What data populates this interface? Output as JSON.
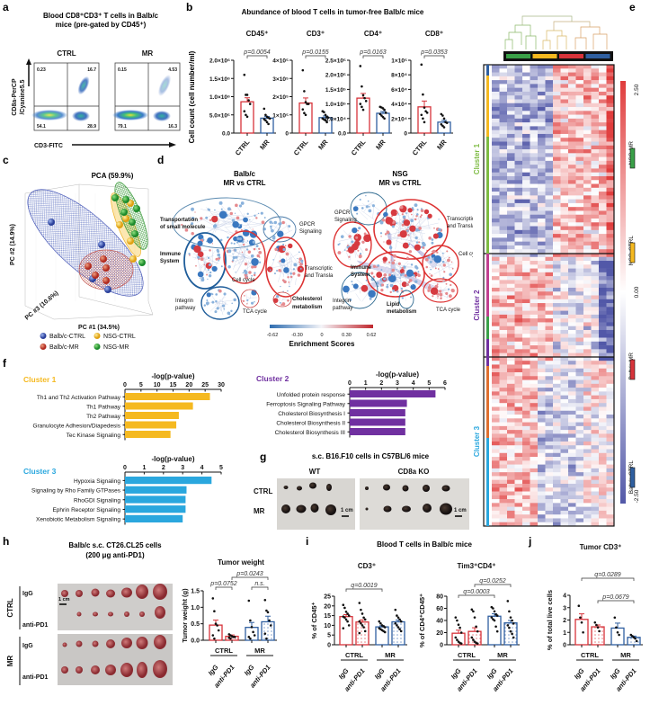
{
  "colors": {
    "red": "#d7333a",
    "blue": "#2f5fa0",
    "yellow": "#f5b920",
    "green": "#3aa048",
    "purple": "#7030a0",
    "cyan": "#2aa7de",
    "cluster1": "#7dbb42"
  },
  "panel_labels": {
    "a": "a",
    "b": "b",
    "c": "c",
    "d": "d",
    "e": "e",
    "f": "f",
    "g": "g",
    "h": "h",
    "i": "i",
    "j": "j"
  },
  "a": {
    "title_line1": "Blood CD8⁺CD3⁺ T cells in Balb/c",
    "title_line2": "mice (pre-gated by CD45⁺)",
    "ylabel1": "CD8a-PerCP",
    "ylabel2": "/Cyanine5.5",
    "xlabel": "CD3-FITC",
    "plots": [
      {
        "label": "CTRL",
        "quadrants": [
          "0.23",
          "16.7",
          "54.1",
          "28.9"
        ]
      },
      {
        "label": "MR",
        "quadrants": [
          "0.15",
          "4.53",
          "79.1",
          "16.3"
        ]
      }
    ]
  },
  "b": {
    "title": "Abundance of blood T cells in tumor-free Balb/c mice",
    "ylabel": "Cell count (cell number/ml)"
  },
  "c": {
    "title": "PCA (59.9%)",
    "pc1": "PC #1 (34.5%)",
    "pc2": "PC #2 (14.9%)",
    "pc3": "PC #3 (10.6%)",
    "legend": [
      "Balb/c-CTRL",
      "NSG-CTRL",
      "Balb/c-MR",
      "NSG-MR"
    ]
  },
  "d": {
    "balb_title1": "Balb/c",
    "balb_title2": "MR vs CTRL",
    "nsg_title1": "NSG",
    "nsg_title2": "MR vs CTRL",
    "balb_labels": {
      "transport1": "Transportation",
      "transport2": "of small molecule",
      "gpcr1": "GPCR",
      "gpcr2": "Signaling",
      "immune1": "Immune",
      "immune2": "System",
      "cellcycle": "Cell cycle",
      "transc1": "Transcriptic",
      "transc2": "and Transla",
      "integrin1": "Integrin",
      "integrin2": "pathway",
      "tca": "TCA cycle",
      "chol1": "Cholesterol",
      "chol2": "metabolism"
    },
    "nsg_labels": {
      "gpcr1": "GPCR",
      "gpcr2": "Signaling",
      "transc1": "Transcription",
      "transc2": "and Translation",
      "cellcycle": "Cell cycle",
      "immune1": "Immune",
      "immune2": "System",
      "integrin1": "Integrin",
      "integrin2": "pathway",
      "lipid1": "Lipid",
      "lipid2": "metabolism",
      "tca": "TCA cycle"
    },
    "scale_ticks": [
      "-0.62",
      "-0.30",
      "0",
      "0.30",
      "0.62"
    ],
    "scale_title": "Enrichment Scores"
  },
  "e": {
    "clusters": [
      "Cluster 1",
      "Cluster 2",
      "Cluster 3"
    ],
    "scale_max": "2.50",
    "scale_mid": "0.00",
    "scale_min": "-2.50",
    "legend": [
      "NSG-MR",
      "NSG-CTRL",
      "Balb/c-MR",
      "Balb/c-CTRL"
    ]
  },
  "g": {
    "title": "s.c. B16.F10 cells in C57BL/6 mice",
    "wt": "WT",
    "ko": "CD8a KO",
    "ctrl": "CTRL",
    "mr": "MR",
    "scale": "1 cm"
  },
  "h": {
    "title1": "Balb/c s.c. CT26.CL25 cells",
    "title2": "(200 μg anti-PD1)",
    "ctrl": "CTRL",
    "mr": "MR",
    "igg": "IgG",
    "antipd1": "anti-PD1",
    "scale": "1 cm"
  },
  "i": {
    "title": "Blood  T cells in Balb/c mice"
  },
  "chart_data": [
    {
      "id": "b-cd45",
      "type": "bar",
      "title": "CD45⁺",
      "ylim": [
        0,
        2000000
      ],
      "yticks": [
        0,
        500000,
        1000000,
        1500000,
        2000000
      ],
      "ytick_labels": [
        "0.0",
        "5.0×10⁵",
        "1.0×10⁶",
        "1.5×10⁶",
        "2.0×10⁶"
      ],
      "groups": [
        {
          "label": "CTRL",
          "mean": 860000,
          "sem": 110000,
          "points": [
            1600000,
            1050000,
            1050000,
            900000,
            800000,
            600000,
            500000,
            450000
          ]
        },
        {
          "label": "MR",
          "mean": 410000,
          "sem": 45000,
          "points": [
            670000,
            500000,
            450000,
            420000,
            400000,
            380000,
            350000,
            300000,
            250000
          ]
        }
      ],
      "comparisons": [
        {
          "from": 0,
          "to": 1,
          "label": "p=0.0054"
        }
      ]
    },
    {
      "id": "b-cd3",
      "type": "bar",
      "title": "CD3⁺",
      "ylim": [
        0,
        400000
      ],
      "yticks": [
        0,
        100000,
        200000,
        300000,
        400000
      ],
      "ytick_labels": [
        "0",
        "1×10⁵",
        "2×10⁵",
        "3×10⁵",
        "4×10⁵"
      ],
      "groups": [
        {
          "label": "CTRL",
          "mean": 165000,
          "sem": 28000,
          "points": [
            345000,
            230000,
            170000,
            160000,
            160000,
            130000,
            110000,
            100000
          ]
        },
        {
          "label": "MR",
          "mean": 85000,
          "sem": 9000,
          "points": [
            120000,
            115000,
            100000,
            90000,
            85000,
            80000,
            75000,
            70000,
            60000
          ]
        }
      ],
      "comparisons": [
        {
          "from": 0,
          "to": 1,
          "label": "p=0.0155"
        }
      ]
    },
    {
      "id": "b-cd4",
      "type": "bar",
      "title": "CD4⁺",
      "ylim": [
        0,
        250000
      ],
      "yticks": [
        0,
        50000,
        100000,
        150000,
        200000,
        250000
      ],
      "ytick_labels": [
        "0.0",
        "5.0×10⁴",
        "1.0×10⁵",
        "1.5×10⁵",
        "2.0×10⁵",
        "2.5×10⁵"
      ],
      "groups": [
        {
          "label": "CTRL",
          "mean": 120000,
          "sem": 16000,
          "points": [
            230000,
            160000,
            130000,
            120000,
            110000,
            100000,
            90000,
            80000
          ]
        },
        {
          "label": "MR",
          "mean": 68000,
          "sem": 6000,
          "points": [
            90000,
            88000,
            85000,
            80000,
            70000,
            65000,
            60000,
            55000,
            50000
          ]
        }
      ],
      "comparisons": [
        {
          "from": 0,
          "to": 1,
          "label": "p=0.0163"
        }
      ]
    },
    {
      "id": "b-cd8",
      "type": "bar",
      "title": "CD8⁺",
      "ylim": [
        0,
        100000
      ],
      "yticks": [
        0,
        20000,
        40000,
        60000,
        80000,
        100000
      ],
      "ytick_labels": [
        "0",
        "2×10⁴",
        "4×10⁴",
        "6×10⁴",
        "8×10⁴",
        "1×10⁵"
      ],
      "groups": [
        {
          "label": "CTRL",
          "mean": 36000,
          "sem": 8000,
          "points": [
            94000,
            53000,
            35000,
            30000,
            28000,
            25000,
            20000,
            15000
          ]
        },
        {
          "label": "MR",
          "mean": 15000,
          "sem": 2500,
          "points": [
            26000,
            24000,
            20000,
            15000,
            14000,
            12000,
            10000,
            8000
          ]
        }
      ],
      "comparisons": [
        {
          "from": 0,
          "to": 1,
          "label": "p=0.0353"
        }
      ]
    },
    {
      "id": "h-tumor-weight",
      "type": "bar",
      "title": "Tumor weight",
      "ylabel": "Tumor weight (g)",
      "ylim": [
        0,
        1.5
      ],
      "yticks": [
        0,
        0.5,
        1,
        1.5
      ],
      "ytick_labels": [
        "0.0",
        "0.5",
        "1.0",
        "1.5"
      ],
      "group_labels": [
        "CTRL",
        "MR"
      ],
      "groups": [
        {
          "label": "IgG",
          "mean": 0.46,
          "sem": 0.15,
          "points": [
            1.27,
            0.88,
            0.5,
            0.45,
            0.3,
            0.15,
            0.05
          ]
        },
        {
          "label": "anti-PD1",
          "mean": 0.12,
          "sem": 0.04,
          "points": [
            0.18,
            0.15,
            0.12,
            0.1,
            0.1,
            0.08,
            0.05
          ]
        },
        {
          "label": "IgG",
          "mean": 0.39,
          "sem": 0.15,
          "points": [
            1.2,
            0.6,
            0.4,
            0.25,
            0.15,
            0.1,
            0.05
          ]
        },
        {
          "label": "anti-PD1",
          "mean": 0.56,
          "sem": 0.17,
          "points": [
            1.22,
            0.9,
            0.85,
            0.6,
            0.45,
            0.2,
            0.05
          ]
        }
      ],
      "comparisons": [
        {
          "from": 0,
          "to": 1,
          "label": "p=0.0752"
        },
        {
          "from": 2,
          "to": 3,
          "label": "n.s."
        },
        {
          "from": 1,
          "to": 3,
          "label": "p=0.0243"
        }
      ]
    },
    {
      "id": "i-cd3",
      "type": "bar",
      "title": "CD3⁺",
      "ylabel": "% of CD45⁺",
      "ylim": [
        0,
        25
      ],
      "yticks": [
        0,
        5,
        10,
        15,
        20,
        25
      ],
      "ytick_labels": [
        "0",
        "5",
        "10",
        "15",
        "20",
        "25"
      ],
      "group_labels": [
        "CTRL",
        "MR"
      ],
      "groups": [
        {
          "label": "IgG",
          "mean": 14.5,
          "sem": 1.0,
          "points": [
            20.5,
            19,
            17,
            16,
            15,
            14.5,
            14,
            13,
            12,
            10,
            8.5
          ]
        },
        {
          "label": "anti-PD1",
          "mean": 11.7,
          "sem": 1.1,
          "points": [
            21.5,
            18,
            16,
            14,
            13,
            12,
            11,
            10,
            9,
            7,
            6
          ]
        },
        {
          "label": "IgG",
          "mean": 9.2,
          "sem": 0.6,
          "points": [
            12,
            11,
            10,
            9.5,
            9,
            8.5,
            8,
            7.5,
            7,
            6.5
          ]
        },
        {
          "label": "anti-PD1",
          "mean": 11.8,
          "sem": 0.9,
          "points": [
            18,
            15,
            14,
            13,
            12,
            11,
            10,
            9,
            8,
            7
          ]
        }
      ],
      "comparisons": [
        {
          "from": 0,
          "to": 2,
          "label": "q=0.0019"
        }
      ]
    },
    {
      "id": "i-tim3",
      "type": "bar",
      "title": "Tim3⁺CD4⁺",
      "ylabel": "% of CD4⁺CD45⁺",
      "ylim": [
        0,
        80
      ],
      "yticks": [
        0,
        20,
        40,
        60,
        80
      ],
      "ytick_labels": [
        "0",
        "20",
        "40",
        "60",
        "80"
      ],
      "group_labels": [
        "CTRL",
        "MR"
      ],
      "groups": [
        {
          "label": "IgG",
          "mean": 19,
          "sem": 5,
          "points": [
            45,
            40,
            33,
            28,
            20,
            12,
            8,
            5,
            3,
            2
          ]
        },
        {
          "label": "anti-PD1",
          "mean": 22,
          "sem": 6,
          "points": [
            58,
            55,
            45,
            30,
            22,
            12,
            8,
            5,
            3,
            2
          ]
        },
        {
          "label": "IgG",
          "mean": 47,
          "sem": 4,
          "points": [
            62,
            60,
            55,
            50,
            48,
            45,
            42,
            40,
            30,
            22
          ]
        },
        {
          "label": "anti-PD1",
          "mean": 36,
          "sem": 4,
          "points": [
            72,
            55,
            45,
            40,
            35,
            32,
            28,
            22,
            18,
            12
          ]
        }
      ],
      "comparisons": [
        {
          "from": 0,
          "to": 2,
          "label": "q=0.0003"
        },
        {
          "from": 1,
          "to": 3,
          "label": "q=0.0252"
        }
      ]
    },
    {
      "id": "j-tumor-cd3",
      "type": "bar",
      "title": "Tumor CD3⁺",
      "ylabel": "% of total live cells",
      "ylim": [
        0,
        4
      ],
      "yticks": [
        0,
        1,
        2,
        3,
        4
      ],
      "ytick_labels": [
        "0",
        "1",
        "2",
        "3",
        "4"
      ],
      "group_labels": [
        "CTRL",
        "MR"
      ],
      "groups": [
        {
          "label": "IgG",
          "mean": 2.05,
          "sem": 0.45,
          "points": [
            3.15,
            2.2,
            1.8,
            1.0
          ]
        },
        {
          "label": "anti-PD1",
          "mean": 1.45,
          "sem": 0.15,
          "points": [
            1.8,
            1.6,
            1.4,
            1.1
          ]
        },
        {
          "label": "IgG",
          "mean": 1.35,
          "sem": 0.4,
          "points": [
            2.2,
            1.4,
            1.0,
            0.8
          ]
        },
        {
          "label": "anti-PD1",
          "mean": 0.6,
          "sem": 0.1,
          "points": [
            0.8,
            0.7,
            0.6,
            0.5,
            0.3
          ]
        }
      ],
      "comparisons": [
        {
          "from": 0,
          "to": 3,
          "label": "q=0.0289"
        },
        {
          "from": 1,
          "to": 3,
          "label": "p=0.0679"
        }
      ]
    },
    {
      "id": "f-cluster1",
      "type": "bar",
      "orientation": "horizontal",
      "title": "Cluster 1",
      "xlabel": "-log(p-value)",
      "xlim": [
        0,
        30
      ],
      "xticks": [
        0,
        5,
        10,
        15,
        20,
        25,
        30
      ],
      "xtick_labels": [
        "0",
        "5",
        "10",
        "15",
        "20",
        "25",
        "30"
      ],
      "categories": [
        "Th1 and Th2 Activation Pathway",
        "Th1 Pathway",
        "Th2 Pathway",
        "Granulocyte Adhesion/Diapedesis",
        "Tec Kinase Signaling"
      ],
      "values": [
        26.5,
        21.2,
        16.8,
        16.0,
        14.2
      ]
    },
    {
      "id": "f-cluster2",
      "type": "bar",
      "orientation": "horizontal",
      "title": "Cluster 2",
      "xlabel": "-log(p-value)",
      "xlim": [
        0,
        6
      ],
      "xticks": [
        0,
        1,
        2,
        3,
        4,
        5,
        6
      ],
      "xtick_labels": [
        "0",
        "1",
        "2",
        "3",
        "4",
        "5",
        "6"
      ],
      "categories": [
        "Unfolded protein response",
        "Ferroptosis Signaling Pathway",
        "Cholesterol Biosynthesis I",
        "Cholesterol Biosynthesis II",
        "Cholesterol Biosynthesis III"
      ],
      "values": [
        5.4,
        3.6,
        3.5,
        3.5,
        3.5
      ]
    },
    {
      "id": "f-cluster3",
      "type": "bar",
      "orientation": "horizontal",
      "title": "Cluster 3",
      "xlabel": "-log(p-value)",
      "xlim": [
        0,
        5
      ],
      "xticks": [
        0,
        1,
        2,
        3,
        4,
        5
      ],
      "xtick_labels": [
        "0",
        "1",
        "2",
        "3",
        "4",
        "5"
      ],
      "categories": [
        "Hypoxia Signaling",
        "Signaling by Rho Family GTPases",
        "RhoGDI Signaling",
        "Ephrin Receptor Signaling",
        "Xenobiotic Metabolism Signaling"
      ],
      "values": [
        4.5,
        3.2,
        3.15,
        3.15,
        3.0
      ]
    }
  ]
}
